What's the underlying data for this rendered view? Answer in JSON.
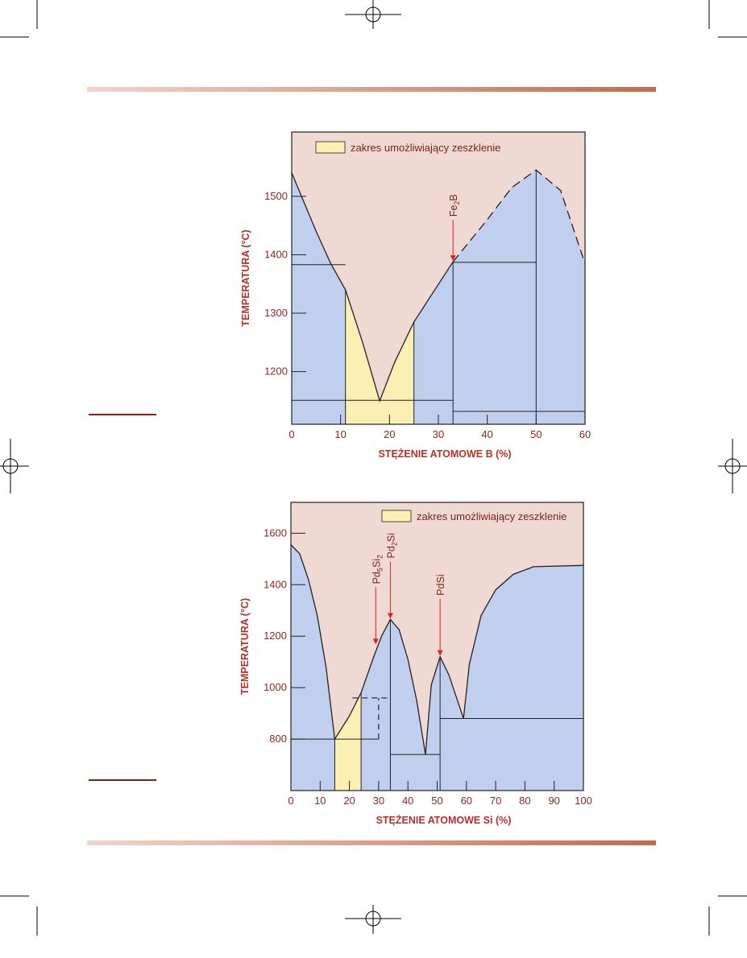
{
  "colors": {
    "liquid": "#efd9d2",
    "solid": "#c0cfee",
    "glass": "#fbefb4",
    "line": "#222222",
    "axis_text": "#8b2a1e",
    "arrow": "#e02020",
    "rule_gradient_start": "#f0d4cc",
    "rule_gradient_end": "#c06c4c"
  },
  "chart_data": [
    {
      "type": "area",
      "title": "",
      "xlabel": "STĘŻENIE ATOMOWE B (%)",
      "ylabel": "TEMPERATURA (°C)",
      "xlim": [
        0,
        60
      ],
      "ylim": [
        1110,
        1610
      ],
      "x_ticks": [
        "0",
        "10",
        "20",
        "30",
        "40",
        "50",
        "60"
      ],
      "y_ticks": [
        "1200",
        "1300",
        "1400",
        "1500"
      ],
      "legend": {
        "label": "zakres umożliwiający zeszklenie",
        "placement": "top-left"
      },
      "glass_range": [
        11,
        25
      ],
      "eutectic": {
        "x": 18,
        "y": 1150
      },
      "compounds": [
        {
          "label": "Fe",
          "sub": "2",
          "suffix": "B",
          "x": 33,
          "y": 1388
        },
        {
          "label": "",
          "sub": "",
          "suffix": "",
          "x": 50,
          "y": 1545
        }
      ],
      "liquidus": [
        {
          "x": 0,
          "y": 1540
        },
        {
          "x": 2.5,
          "y": 1490
        },
        {
          "x": 5,
          "y": 1440
        },
        {
          "x": 8,
          "y": 1385
        },
        {
          "x": 11,
          "y": 1340
        },
        {
          "x": 14.5,
          "y": 1250
        },
        {
          "x": 18,
          "y": 1150
        },
        {
          "x": 21,
          "y": 1215
        },
        {
          "x": 25,
          "y": 1285
        },
        {
          "x": 33,
          "y": 1388
        }
      ],
      "liquidus_dashed": [
        {
          "x": 33,
          "y": 1388
        },
        {
          "x": 40,
          "y": 1460
        },
        {
          "x": 45,
          "y": 1515
        },
        {
          "x": 50,
          "y": 1545
        },
        {
          "x": 55,
          "y": 1510
        },
        {
          "x": 60,
          "y": 1385
        }
      ],
      "horizontal_lines": [
        {
          "x1": 0,
          "x2": 11,
          "y": 1383
        },
        {
          "x1": 0,
          "x2": 33,
          "y": 1151
        },
        {
          "x1": 33,
          "x2": 50,
          "y": 1387
        },
        {
          "x1": 33,
          "x2": 60,
          "y": 1132
        }
      ],
      "vertical_lines": [
        {
          "x": 33,
          "y1": 1110,
          "y2": 1388
        },
        {
          "x": 50,
          "y1": 1110,
          "y2": 1545
        }
      ]
    },
    {
      "type": "area",
      "title": "",
      "xlabel": "STĘŻENIE ATOMOWE Si (%)",
      "ylabel": "TEMPERATURA (°C)",
      "xlim": [
        0,
        100
      ],
      "ylim": [
        600,
        1720
      ],
      "x_ticks": [
        "0",
        "10",
        "20",
        "30",
        "40",
        "50",
        "60",
        "70",
        "80",
        "90",
        "100"
      ],
      "y_ticks": [
        "800",
        "1000",
        "1200",
        "1400",
        "1600"
      ],
      "legend": {
        "label": "zakres umożliwiający zeszklenie",
        "placement": "top-right"
      },
      "glass_range": [
        15,
        24
      ],
      "compounds": [
        {
          "label": "Pd",
          "sub": "5",
          "suffix": "Si",
          "sub2": "2",
          "x": 29,
          "y": 1165
        },
        {
          "label": "Pd",
          "sub": "2",
          "suffix": "Si",
          "sub2": "",
          "x": 34,
          "y": 1265
        },
        {
          "label": "PdSi",
          "sub": "",
          "suffix": "",
          "sub2": "",
          "x": 51,
          "y": 1120
        }
      ],
      "liquidus": [
        {
          "x": 0,
          "y": 1555
        },
        {
          "x": 3,
          "y": 1520
        },
        {
          "x": 6,
          "y": 1420
        },
        {
          "x": 9,
          "y": 1280
        },
        {
          "x": 12,
          "y": 1080
        },
        {
          "x": 15,
          "y": 800
        },
        {
          "x": 20,
          "y": 890
        },
        {
          "x": 24,
          "y": 980
        },
        {
          "x": 28,
          "y": 1110
        },
        {
          "x": 31,
          "y": 1200
        },
        {
          "x": 34,
          "y": 1265
        },
        {
          "x": 37,
          "y": 1225
        },
        {
          "x": 40,
          "y": 1110
        },
        {
          "x": 43,
          "y": 950
        },
        {
          "x": 46,
          "y": 740
        },
        {
          "x": 48,
          "y": 1010
        },
        {
          "x": 51,
          "y": 1120
        },
        {
          "x": 54,
          "y": 1050
        },
        {
          "x": 59,
          "y": 880
        },
        {
          "x": 61,
          "y": 1090
        },
        {
          "x": 65,
          "y": 1280
        },
        {
          "x": 70,
          "y": 1380
        },
        {
          "x": 76,
          "y": 1440
        },
        {
          "x": 83,
          "y": 1470
        },
        {
          "x": 100,
          "y": 1475
        }
      ],
      "horizontal_lines": [
        {
          "x1": 0,
          "x2": 30,
          "y": 800
        },
        {
          "x1": 34,
          "x2": 51,
          "y": 740
        },
        {
          "x1": 51,
          "x2": 100,
          "y": 880
        }
      ],
      "dashed_lines": [
        {
          "x1": 21,
          "y1": 960,
          "x2": 33,
          "y2": 960
        },
        {
          "x1": 30,
          "y1": 800,
          "x2": 30,
          "y2": 960
        }
      ],
      "vertical_lines": [
        {
          "x": 34,
          "y1": 600,
          "y2": 1265
        },
        {
          "x": 51,
          "y1": 600,
          "y2": 1120
        }
      ]
    }
  ]
}
